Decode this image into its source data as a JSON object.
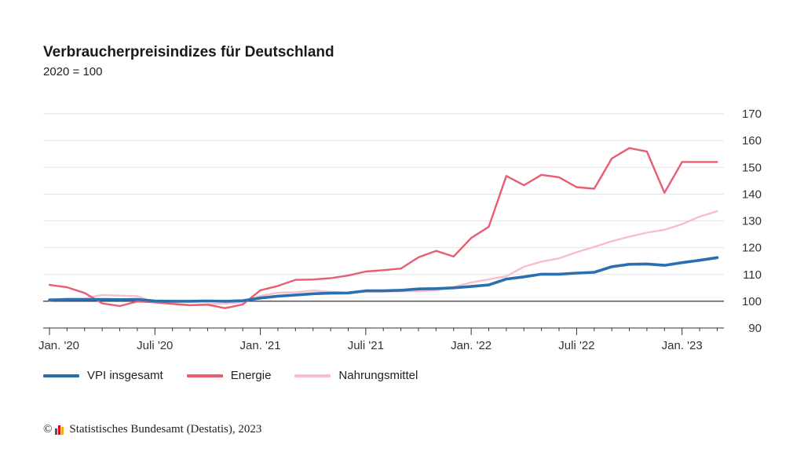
{
  "chart_data": {
    "type": "line",
    "title": "Verbraucherpreisindizes für Deutschland",
    "subtitle": "2020 = 100",
    "ylim": [
      90,
      170
    ],
    "yticks": [
      90,
      100,
      110,
      120,
      130,
      140,
      150,
      160,
      170
    ],
    "xtick_labels": [
      "Jan. '20",
      "Juli '20",
      "Jan. '21",
      "Juli '21",
      "Jan. '22",
      "Juli '22",
      "Jan. '23"
    ],
    "x": [
      "2020-01",
      "2020-02",
      "2020-03",
      "2020-04",
      "2020-05",
      "2020-06",
      "2020-07",
      "2020-08",
      "2020-09",
      "2020-10",
      "2020-11",
      "2020-12",
      "2021-01",
      "2021-02",
      "2021-03",
      "2021-04",
      "2021-05",
      "2021-06",
      "2021-07",
      "2021-08",
      "2021-09",
      "2021-10",
      "2021-11",
      "2021-12",
      "2022-01",
      "2022-02",
      "2022-03",
      "2022-04",
      "2022-05",
      "2022-06",
      "2022-07",
      "2022-08",
      "2022-09",
      "2022-10",
      "2022-11",
      "2022-12",
      "2023-01",
      "2023-02",
      "2023-03"
    ],
    "grid": true,
    "legend_position": "bottom-left",
    "series": [
      {
        "name": "VPI insgesamt",
        "color": "#2b6fb0",
        "values": [
          100.5,
          100.6,
          100.6,
          100.7,
          100.6,
          100.7,
          100.1,
          100.0,
          100.0,
          100.1,
          100.0,
          100.2,
          101.2,
          101.9,
          102.3,
          102.8,
          103.0,
          103.1,
          103.9,
          103.9,
          104.1,
          104.6,
          104.7,
          105.0,
          105.5,
          106.1,
          108.3,
          109.1,
          110.1,
          110.1,
          110.5,
          110.8,
          112.9,
          113.8,
          113.9,
          113.4,
          114.4,
          115.3,
          116.3
        ]
      },
      {
        "name": "Energie",
        "color": "#e85d72",
        "values": [
          106.1,
          105.2,
          103.1,
          99.2,
          98.2,
          99.9,
          99.6,
          99.0,
          98.5,
          98.7,
          97.4,
          98.8,
          104.1,
          105.7,
          108.0,
          108.1,
          108.6,
          109.6,
          111.1,
          111.6,
          112.2,
          116.4,
          118.8,
          116.7,
          123.6,
          127.8,
          146.8,
          143.3,
          147.2,
          146.3,
          142.6,
          142.0,
          153.3,
          157.2,
          155.9,
          140.5,
          152.0,
          152.0,
          152.0
        ]
      },
      {
        "name": "Nahrungsmittel",
        "color": "#f6bfc9",
        "values": [
          100.2,
          101.1,
          101.1,
          102.3,
          102.1,
          101.9,
          99.5,
          99.1,
          98.6,
          98.9,
          99.1,
          99.6,
          102.0,
          103.2,
          103.3,
          104.0,
          103.5,
          103.1,
          103.6,
          103.6,
          103.7,
          103.7,
          104.1,
          105.3,
          107.0,
          108.2,
          109.3,
          112.9,
          114.8,
          116.0,
          118.3,
          120.3,
          122.4,
          124.1,
          125.6,
          126.7,
          128.8,
          131.6,
          133.6
        ]
      }
    ]
  },
  "footer": {
    "copyright_symbol": "©",
    "source": "Statistisches Bundesamt (Destatis), 2023",
    "logo_colors": [
      "#555555",
      "#e2001a",
      "#f2b400"
    ]
  }
}
